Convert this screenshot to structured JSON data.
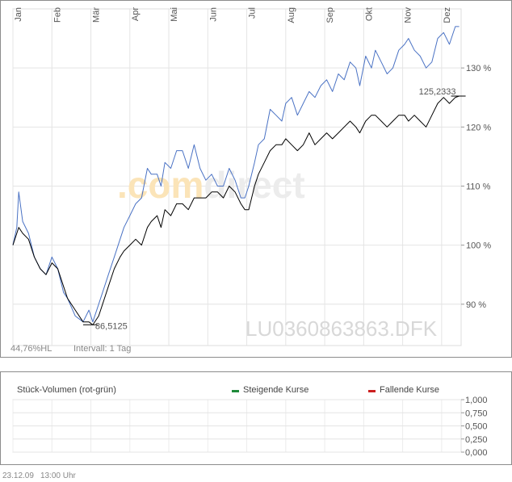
{
  "chart_data": [
    {
      "type": "line",
      "x": [
        "Jan",
        "Feb",
        "Mär",
        "Apr",
        "Mai",
        "Jun",
        "Jul",
        "Aug",
        "Sep",
        "Okt",
        "Nov",
        "Dez"
      ],
      "y_tick_labels": [
        "90 %",
        "100 %",
        "110 %",
        "120 %",
        "130 %"
      ],
      "y_ticks": [
        90,
        100,
        110,
        120,
        130
      ],
      "ylim": [
        83,
        140
      ],
      "series": [
        {
          "color": "#4a72c4",
          "points": [
            [
              0,
              100
            ],
            [
              0.1,
              103
            ],
            [
              0.15,
              109
            ],
            [
              0.25,
              104
            ],
            [
              0.4,
              102
            ],
            [
              0.55,
              98
            ],
            [
              0.7,
              96
            ],
            [
              0.85,
              95
            ],
            [
              1.0,
              98
            ],
            [
              1.15,
              96
            ],
            [
              1.3,
              92
            ],
            [
              1.4,
              91
            ],
            [
              1.6,
              88
            ],
            [
              1.8,
              87
            ],
            [
              1.95,
              89
            ],
            [
              2.05,
              87
            ],
            [
              2.2,
              90
            ],
            [
              2.3,
              92
            ],
            [
              2.45,
              95
            ],
            [
              2.6,
              98
            ],
            [
              2.75,
              101
            ],
            [
              2.85,
              103
            ],
            [
              3.0,
              105
            ],
            [
              3.15,
              107
            ],
            [
              3.3,
              108
            ],
            [
              3.45,
              113
            ],
            [
              3.55,
              112
            ],
            [
              3.7,
              112
            ],
            [
              3.8,
              110
            ],
            [
              3.9,
              114
            ],
            [
              4.05,
              113
            ],
            [
              4.2,
              116
            ],
            [
              4.35,
              116
            ],
            [
              4.5,
              113
            ],
            [
              4.65,
              117
            ],
            [
              4.8,
              113
            ],
            [
              4.95,
              111
            ],
            [
              5.1,
              112
            ],
            [
              5.25,
              110
            ],
            [
              5.4,
              110
            ],
            [
              5.55,
              113
            ],
            [
              5.7,
              111
            ],
            [
              5.85,
              108
            ],
            [
              5.95,
              108
            ],
            [
              6.05,
              110
            ],
            [
              6.2,
              114
            ],
            [
              6.3,
              117
            ],
            [
              6.45,
              118
            ],
            [
              6.6,
              123
            ],
            [
              6.75,
              122
            ],
            [
              6.9,
              121
            ],
            [
              7.0,
              124
            ],
            [
              7.15,
              125
            ],
            [
              7.3,
              122
            ],
            [
              7.45,
              124
            ],
            [
              7.6,
              126
            ],
            [
              7.75,
              125
            ],
            [
              7.9,
              127
            ],
            [
              8.05,
              128
            ],
            [
              8.2,
              126
            ],
            [
              8.35,
              129
            ],
            [
              8.5,
              128
            ],
            [
              8.65,
              131
            ],
            [
              8.8,
              130
            ],
            [
              8.9,
              127
            ],
            [
              9.05,
              132
            ],
            [
              9.2,
              130
            ],
            [
              9.3,
              133
            ],
            [
              9.45,
              131
            ],
            [
              9.6,
              129
            ],
            [
              9.75,
              130
            ],
            [
              9.9,
              133
            ],
            [
              10.05,
              134
            ],
            [
              10.15,
              135
            ],
            [
              10.3,
              133
            ],
            [
              10.45,
              132
            ],
            [
              10.6,
              130
            ],
            [
              10.75,
              131
            ],
            [
              10.9,
              135
            ],
            [
              11.05,
              136
            ],
            [
              11.2,
              134
            ],
            [
              11.35,
              137
            ],
            [
              11.45,
              137
            ]
          ]
        },
        {
          "color": "#000000",
          "points": [
            [
              0,
              100
            ],
            [
              0.1,
              102
            ],
            [
              0.15,
              103
            ],
            [
              0.25,
              102
            ],
            [
              0.4,
              101
            ],
            [
              0.55,
              98
            ],
            [
              0.7,
              96
            ],
            [
              0.85,
              95
            ],
            [
              1.0,
              97
            ],
            [
              1.15,
              96
            ],
            [
              1.3,
              93
            ],
            [
              1.4,
              91
            ],
            [
              1.6,
              89
            ],
            [
              1.8,
              87
            ],
            [
              1.95,
              87
            ],
            [
              2.05,
              86.5
            ],
            [
              2.2,
              88
            ],
            [
              2.3,
              90
            ],
            [
              2.45,
              93
            ],
            [
              2.6,
              96
            ],
            [
              2.75,
              98
            ],
            [
              2.85,
              99
            ],
            [
              3.0,
              100
            ],
            [
              3.15,
              101
            ],
            [
              3.3,
              100
            ],
            [
              3.45,
              103
            ],
            [
              3.55,
              104
            ],
            [
              3.7,
              105
            ],
            [
              3.8,
              103
            ],
            [
              3.9,
              106
            ],
            [
              4.05,
              105
            ],
            [
              4.2,
              107
            ],
            [
              4.35,
              107
            ],
            [
              4.5,
              106
            ],
            [
              4.65,
              108
            ],
            [
              4.8,
              108
            ],
            [
              4.95,
              108
            ],
            [
              5.1,
              109
            ],
            [
              5.25,
              109
            ],
            [
              5.4,
              108
            ],
            [
              5.55,
              110
            ],
            [
              5.7,
              109
            ],
            [
              5.85,
              107
            ],
            [
              5.95,
              106
            ],
            [
              6.05,
              106
            ],
            [
              6.2,
              110
            ],
            [
              6.3,
              112
            ],
            [
              6.45,
              114
            ],
            [
              6.6,
              116
            ],
            [
              6.75,
              117
            ],
            [
              6.9,
              117
            ],
            [
              7.0,
              118
            ],
            [
              7.15,
              117
            ],
            [
              7.3,
              116
            ],
            [
              7.45,
              117
            ],
            [
              7.6,
              119
            ],
            [
              7.75,
              117
            ],
            [
              7.9,
              118
            ],
            [
              8.05,
              119
            ],
            [
              8.2,
              118
            ],
            [
              8.35,
              119
            ],
            [
              8.5,
              120
            ],
            [
              8.65,
              121
            ],
            [
              8.8,
              120
            ],
            [
              8.9,
              119
            ],
            [
              9.05,
              121
            ],
            [
              9.2,
              122
            ],
            [
              9.3,
              122
            ],
            [
              9.45,
              121
            ],
            [
              9.6,
              120
            ],
            [
              9.75,
              121
            ],
            [
              9.9,
              122
            ],
            [
              10.05,
              122
            ],
            [
              10.15,
              121
            ],
            [
              10.3,
              122
            ],
            [
              10.45,
              121
            ],
            [
              10.6,
              120
            ],
            [
              10.75,
              122
            ],
            [
              10.9,
              124
            ],
            [
              11.05,
              125
            ],
            [
              11.2,
              124
            ],
            [
              11.35,
              125
            ],
            [
              11.45,
              125.2333
            ]
          ]
        }
      ],
      "annotations": {
        "max_label": "125,2333",
        "max_value": 125.2333,
        "min_label": "86,5125",
        "min_value": 86.5125
      },
      "watermark": ".comdirect",
      "isin": "LU0360863863.DFK",
      "info_hl": "44,76%HL",
      "info_interval": "Intervall: 1 Tag",
      "grid": true
    },
    {
      "type": "bar",
      "title": "Stück-Volumen (rot-grün)",
      "legend": [
        {
          "label": "Steigende Kurse",
          "color": "#1e8a3a"
        },
        {
          "label": "Fallende Kurse",
          "color": "#cc1f1f"
        }
      ],
      "y_tick_labels": [
        "1,000",
        "0,750",
        "0,500",
        "0,250",
        "0,000"
      ],
      "y_ticks": [
        1.0,
        0.75,
        0.5,
        0.25,
        0.0
      ],
      "ylim": [
        0,
        1
      ],
      "values": []
    }
  ],
  "footer": {
    "date": "23.12.09",
    "time": "13:00 Uhr"
  }
}
